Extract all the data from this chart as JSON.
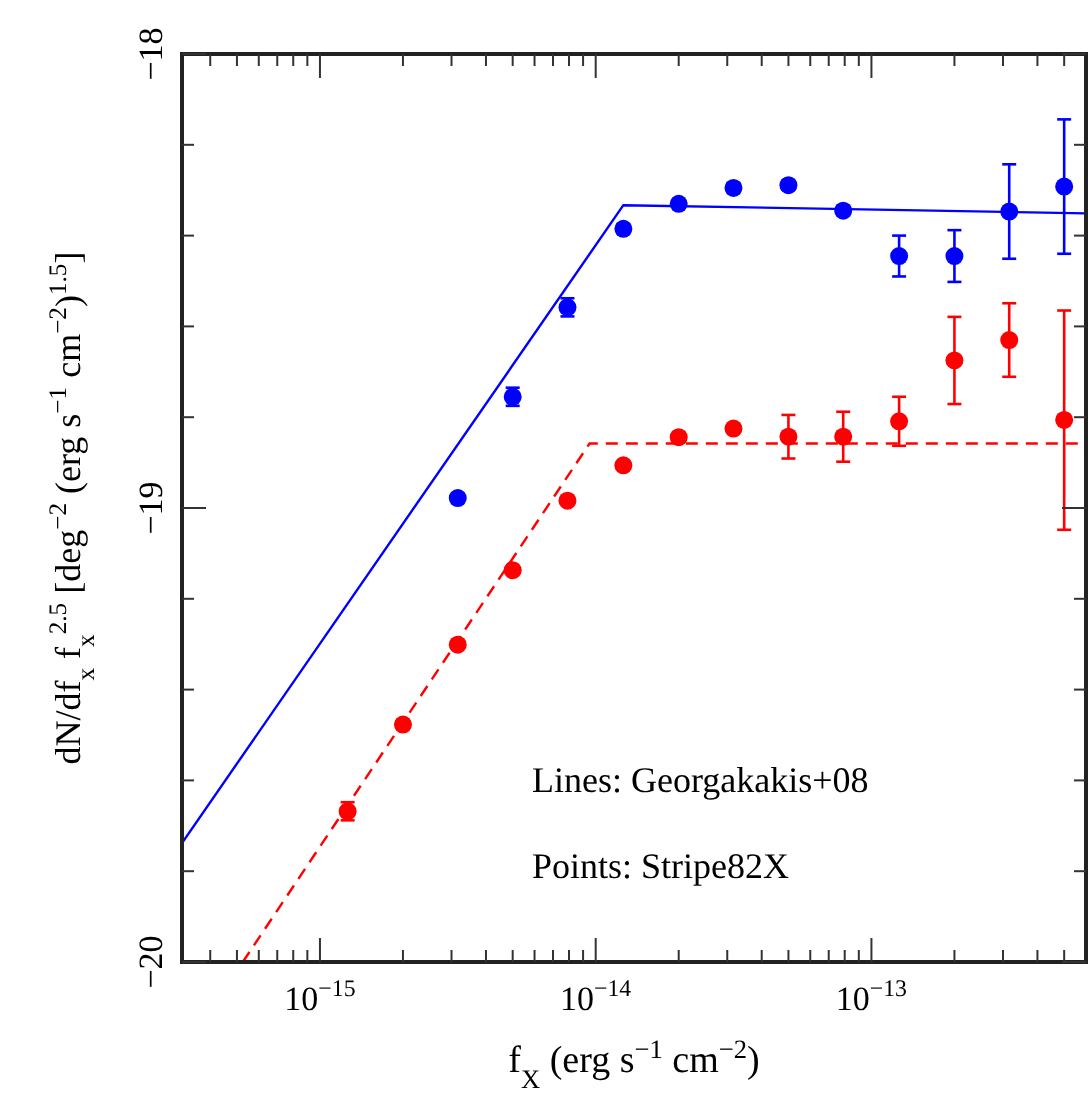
{
  "chart_data": {
    "type": "scatter",
    "xlabel": "f$_{X}$ (erg s$^{−1}$ cm$^{−2}$)",
    "ylabel": "dN/df$_{x}$ f$_{x}$$^{2.5}$ [deg$^{−2}$ (erg s$^{−1}$ cm$^{−2}$)$^{1.5}$]",
    "log": "x",
    "grid": false,
    "xlim": [
      3.16e-16,
      6e-13
    ],
    "ylim": [
      -20,
      -18
    ],
    "xticks": [
      {
        "value": 4e-16,
        "label": null
      },
      {
        "value": 5e-16,
        "label": null
      },
      {
        "value": 6e-16,
        "label": null
      },
      {
        "value": 7e-16,
        "label": null
      },
      {
        "value": 8e-16,
        "label": null
      },
      {
        "value": 9e-16,
        "label": null
      },
      {
        "value": 1e-15,
        "label": "10$^{−15}$"
      },
      {
        "value": 2e-15,
        "label": null
      },
      {
        "value": 3e-15,
        "label": null
      },
      {
        "value": 4e-15,
        "label": null
      },
      {
        "value": 5e-15,
        "label": null
      },
      {
        "value": 6e-15,
        "label": null
      },
      {
        "value": 7e-15,
        "label": null
      },
      {
        "value": 8e-15,
        "label": null
      },
      {
        "value": 9e-15,
        "label": null
      },
      {
        "value": 1e-14,
        "label": "10$^{−14}$"
      },
      {
        "value": 2e-14,
        "label": null
      },
      {
        "value": 3e-14,
        "label": null
      },
      {
        "value": 4e-14,
        "label": null
      },
      {
        "value": 5e-14,
        "label": null
      },
      {
        "value": 6e-14,
        "label": null
      },
      {
        "value": 7e-14,
        "label": null
      },
      {
        "value": 8e-14,
        "label": null
      },
      {
        "value": 9e-14,
        "label": null
      },
      {
        "value": 1e-13,
        "label": "10$^{−13}$"
      },
      {
        "value": 2e-13,
        "label": null
      },
      {
        "value": 3e-13,
        "label": null
      },
      {
        "value": 4e-13,
        "label": null
      },
      {
        "value": 5e-13,
        "label": null
      }
    ],
    "yticks": [
      {
        "value": -20,
        "label": "−20"
      },
      {
        "value": -19.8,
        "label": null
      },
      {
        "value": -19.6,
        "label": null
      },
      {
        "value": -19.4,
        "label": null
      },
      {
        "value": -19.2,
        "label": null
      },
      {
        "value": -19,
        "label": "−19"
      },
      {
        "value": -18.8,
        "label": null
      },
      {
        "value": -18.6,
        "label": null
      },
      {
        "value": -18.4,
        "label": null
      },
      {
        "value": -18.2,
        "label": null
      },
      {
        "value": -18,
        "label": "−18"
      }
    ],
    "series": [
      {
        "marker": "circle",
        "color": "#0000ff",
        "x": [
          3.16e-15,
          5e-15,
          7.9e-15,
          1.26e-14,
          2e-14,
          3.16e-14,
          5e-14,
          7.9e-14,
          1.26e-13,
          2e-13,
          3.16e-13,
          5e-13
        ],
        "values": [
          -18.978,
          -18.755,
          -18.558,
          -18.385,
          -18.33,
          -18.295,
          -18.289,
          -18.345,
          -18.445,
          -18.445,
          -18.347,
          -18.292
        ],
        "errors": [
          0.01,
          0.02,
          0.02,
          0.01,
          0.005,
          0.01,
          0.01,
          0.01,
          0.045,
          0.057,
          0.104,
          0.148
        ]
      },
      {
        "marker": "circle",
        "color": "#ff0000",
        "x": [
          1.26e-15,
          2e-15,
          3.16e-15,
          5e-15,
          7.9e-15,
          1.26e-14,
          2e-14,
          3.16e-14,
          5e-14,
          7.9e-14,
          1.26e-13,
          2e-13,
          3.16e-13,
          5e-13
        ],
        "values": [
          -19.668,
          -19.477,
          -19.301,
          -19.137,
          -18.984,
          -18.906,
          -18.844,
          -18.825,
          -18.843,
          -18.843,
          -18.809,
          -18.675,
          -18.63,
          -18.806
        ],
        "errors": [
          0.02,
          0.01,
          0.005,
          0.005,
          0.005,
          0.005,
          0.01,
          0.008,
          0.048,
          0.055,
          0.054,
          0.096,
          0.081,
          [
            -19.048,
            -18.565
          ]
        ]
      },
      {
        "type": "line",
        "marker": "none",
        "color": "#0000ff",
        "line_style": "solid",
        "x": [
          3.16e-16,
          1.26e-14,
          6e-13
        ],
        "values": [
          -19.738,
          -18.333,
          -18.351
        ]
      },
      {
        "type": "line",
        "marker": "none",
        "color": "#ff0000",
        "line_style": "dashed",
        "x": [
          5.25e-16,
          9.5e-15,
          6e-13
        ],
        "values": [
          -20,
          -18.858,
          -18.858
        ]
      }
    ],
    "annotations": [
      "Lines: Georgakakis+08",
      "Points: Stripe82X"
    ]
  }
}
